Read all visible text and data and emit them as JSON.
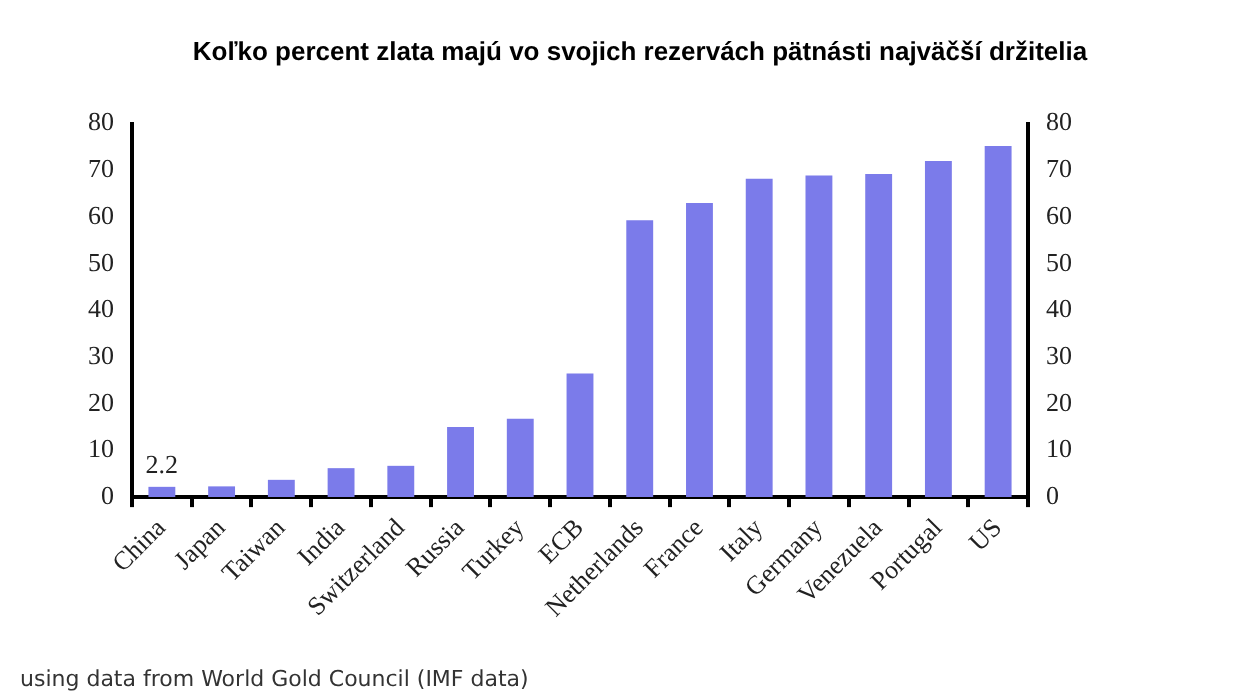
{
  "chart_data": {
    "type": "bar",
    "title": "Koľko percent zlata majú vo svojich rezervách pätnásti najväčší držitelia",
    "categories": [
      "China",
      "Japan",
      "Taiwan",
      "India",
      "Switzerland",
      "Russia",
      "Turkey",
      "ECB",
      "Netherlands",
      "France",
      "Italy",
      "Germany",
      "Venezuela",
      "Portugal",
      "US"
    ],
    "values": [
      2.2,
      2.3,
      3.7,
      6.2,
      6.7,
      15,
      16.8,
      26.5,
      59.3,
      63,
      68.2,
      68.9,
      69.2,
      72,
      75.2
    ],
    "value_labels": [
      "2.2",
      null,
      null,
      null,
      null,
      null,
      null,
      null,
      null,
      null,
      null,
      null,
      null,
      null,
      null
    ],
    "color": "#7b7bea",
    "ylim": [
      0,
      80
    ],
    "yticks": [
      0,
      10,
      20,
      30,
      40,
      50,
      60,
      70,
      80
    ],
    "y2lim": [
      0,
      80
    ],
    "y2ticks": [
      0,
      10,
      20,
      30,
      40,
      50,
      60,
      70,
      80
    ],
    "grid": false,
    "legend": false,
    "annotations": [
      "using data from World Gold Council (IMF data)"
    ]
  }
}
